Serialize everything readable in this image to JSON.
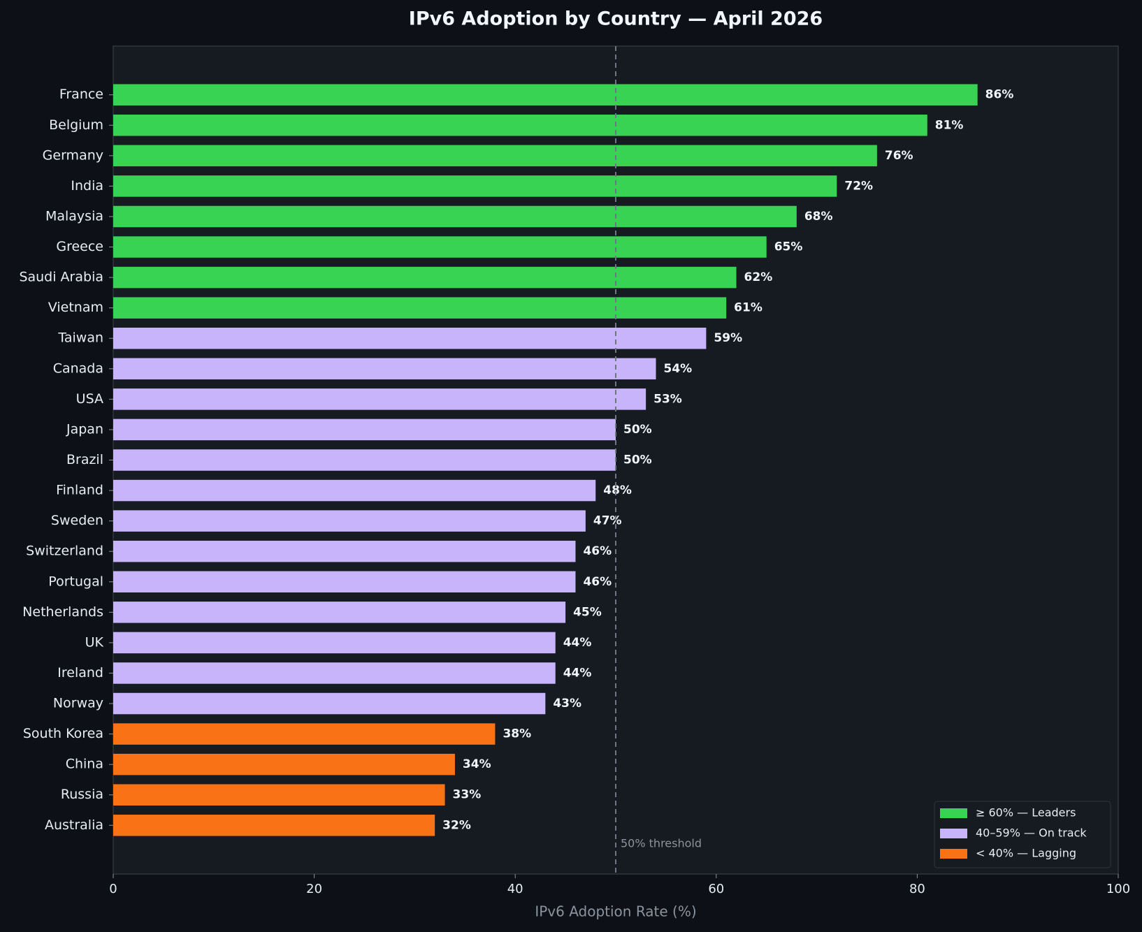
{
  "chart_data": {
    "type": "hbar",
    "title": "IPv6 Adoption by Country — April 2026",
    "xlabel": "IPv6 Adoption Rate (%)",
    "categories": [
      "France",
      "Belgium",
      "Germany",
      "India",
      "Malaysia",
      "Greece",
      "Saudi Arabia",
      "Vietnam",
      "Taiwan",
      "Canada",
      "USA",
      "Japan",
      "Brazil",
      "Finland",
      "Sweden",
      "Switzerland",
      "Portugal",
      "Netherlands",
      "UK",
      "Ireland",
      "Norway",
      "South Korea",
      "China",
      "Russia",
      "Australia"
    ],
    "series": [
      {
        "name": "≥ 60% — Leaders",
        "color": "#39d353",
        "values": [
          86,
          81,
          76,
          72,
          68,
          65,
          62,
          61,
          null,
          null,
          null,
          null,
          null,
          null,
          null,
          null,
          null,
          null,
          null,
          null,
          null,
          null,
          null,
          null,
          null
        ],
        "value_labels": [
          "86%",
          "81%",
          "76%",
          "72%",
          "68%",
          "65%",
          "62%",
          "61%",
          null,
          null,
          null,
          null,
          null,
          null,
          null,
          null,
          null,
          null,
          null,
          null,
          null,
          null,
          null,
          null,
          null
        ]
      },
      {
        "name": "40–59% — On track",
        "color": "#c8b4fa",
        "values": [
          null,
          null,
          null,
          null,
          null,
          null,
          null,
          null,
          59,
          54,
          53,
          50,
          50,
          48,
          47,
          46,
          46,
          45,
          44,
          44,
          43,
          null,
          null,
          null,
          null
        ],
        "value_labels": [
          null,
          null,
          null,
          null,
          null,
          null,
          null,
          null,
          "59%",
          "54%",
          "53%",
          "50%",
          "50%",
          "48%",
          "47%",
          "46%",
          "46%",
          "45%",
          "44%",
          "44%",
          "43%",
          null,
          null,
          null,
          null
        ]
      },
      {
        "name": "< 40% — Lagging",
        "color": "#f97316",
        "values": [
          null,
          null,
          null,
          null,
          null,
          null,
          null,
          null,
          null,
          null,
          null,
          null,
          null,
          null,
          null,
          null,
          null,
          null,
          null,
          null,
          null,
          38,
          34,
          33,
          32
        ],
        "value_labels": [
          null,
          null,
          null,
          null,
          null,
          null,
          null,
          null,
          null,
          null,
          null,
          null,
          null,
          null,
          null,
          null,
          null,
          null,
          null,
          null,
          null,
          "38%",
          "34%",
          "33%",
          "32%"
        ]
      }
    ],
    "xlim": [
      0,
      100
    ],
    "xticks": [
      0,
      20,
      40,
      60,
      80,
      100
    ],
    "threshold": {
      "value": 50,
      "label": "50% threshold"
    },
    "legend": "lower right"
  }
}
